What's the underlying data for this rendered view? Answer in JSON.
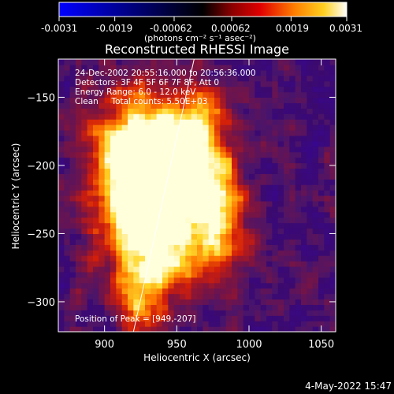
{
  "colorbar": {
    "tick_labels": [
      "-0.0031",
      "-0.0019",
      "-0.00062",
      "0.00062",
      "0.0019",
      "0.0031"
    ],
    "unit_label": "(photons cm⁻² s⁻¹ asec⁻²)",
    "range": [
      -0.0031,
      0.0031
    ]
  },
  "chart_data": {
    "type": "heatmap",
    "title": "Reconstructed RHESSI Image",
    "xlabel": "Heliocentric X (arcsec)",
    "ylabel": "Heliocentric Y (arcsec)",
    "xlim": [
      868,
      1060
    ],
    "ylim": [
      -322,
      -122
    ],
    "x_ticks": [
      900,
      950,
      1000,
      1050
    ],
    "y_ticks": [
      -150,
      -200,
      -250,
      -300
    ],
    "info_lines": [
      "24-Dec-2002 20:55:16.000 to 20:56:36.000",
      "Detectors: 3F 4F 5F 6F 7F 8F, Att 0",
      "Energy Range: 6.0 - 12.0 keV",
      "Clean     Total counts: 5.50E+03"
    ],
    "peak_label": "Position of Peak = [949,-207]",
    "peak": [
      949,
      -207
    ],
    "limb_line": [
      [
        920,
        -322
      ],
      [
        962,
        -122
      ]
    ],
    "blobs": [
      {
        "x": 922,
        "y": -200,
        "sx": 22,
        "sy": 38,
        "a": 0.95
      },
      {
        "x": 940,
        "y": -210,
        "sx": 24,
        "sy": 30,
        "a": 1.0
      },
      {
        "x": 955,
        "y": -190,
        "sx": 18,
        "sy": 20,
        "a": 0.8
      },
      {
        "x": 980,
        "y": -240,
        "sx": 14,
        "sy": 28,
        "a": 0.75
      },
      {
        "x": 935,
        "y": -265,
        "sx": 22,
        "sy": 25,
        "a": 0.75
      },
      {
        "x": 925,
        "y": -300,
        "sx": 12,
        "sy": 18,
        "a": 0.55
      },
      {
        "x": 970,
        "y": -160,
        "sx": 10,
        "sy": 10,
        "a": 0.35
      }
    ]
  },
  "footer": {
    "timestamp": "4-May-2022 15:47"
  }
}
